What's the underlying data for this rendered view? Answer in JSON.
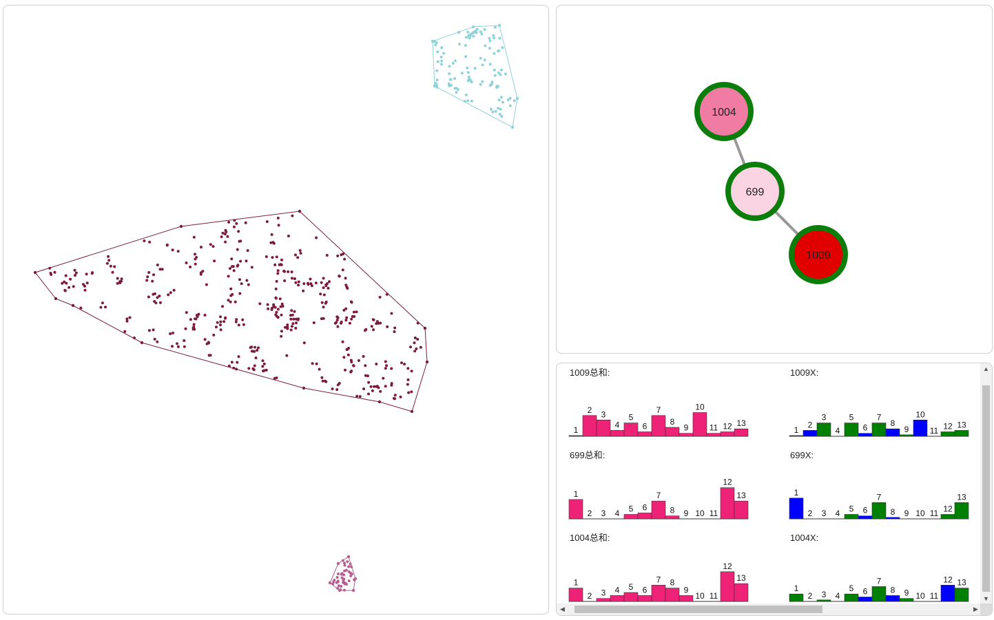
{
  "scatter": {
    "clusters": [
      {
        "name": "cluster-cyan",
        "color": "#8fd3d9",
        "hull": [
          [
            627,
            59
          ],
          [
            686,
            38
          ],
          [
            724,
            36
          ],
          [
            750,
            142
          ],
          [
            743,
            184
          ],
          [
            630,
            124
          ]
        ],
        "center": [
          690,
          105
        ],
        "spread": [
          40,
          45
        ],
        "count": 110
      },
      {
        "name": "cluster-maroon",
        "color": "#7b1c3e",
        "hull": [
          [
            50,
            395
          ],
          [
            262,
            328
          ],
          [
            434,
            306
          ],
          [
            616,
            476
          ],
          [
            619,
            525
          ],
          [
            597,
            597
          ],
          [
            550,
            583
          ],
          [
            440,
            563
          ],
          [
            205,
            497
          ],
          [
            105,
            443
          ],
          [
            80,
            433
          ]
        ],
        "center": [
          335,
          430
        ],
        "spread": [
          230,
          110
        ],
        "count": 420
      },
      {
        "name": "cluster-pink",
        "color": "#b85f91",
        "hull": [
          [
            505,
            808
          ],
          [
            515,
            840
          ],
          [
            512,
            857
          ],
          [
            492,
            857
          ],
          [
            478,
            846
          ],
          [
            490,
            818
          ]
        ],
        "center": [
          497,
          838
        ],
        "spread": [
          12,
          15
        ],
        "count": 40
      }
    ]
  },
  "graph": {
    "nodes": [
      {
        "id": "1004",
        "label": "1004",
        "fill": "#f07ba3",
        "stroke": "#0a7d0a"
      },
      {
        "id": "699",
        "label": "699",
        "fill": "#fad4e2",
        "stroke": "#0a7d0a"
      },
      {
        "id": "1009",
        "label": "1009",
        "fill": "#e00000",
        "stroke": "#0a7d0a"
      }
    ],
    "edges": [
      [
        "1004",
        "699"
      ],
      [
        "699",
        "1009"
      ]
    ]
  },
  "histograms": {
    "colors": {
      "pink": "#ee2277",
      "blue": "#0000ff",
      "green": "#008000"
    },
    "charts": [
      {
        "title": "1009总和:",
        "type": "bar",
        "values": [
          0.5,
          14,
          11,
          4,
          9,
          3,
          14,
          6,
          2,
          16,
          2,
          3,
          5
        ],
        "colors": "pink"
      },
      {
        "title": "1009X:",
        "type": "bar",
        "values": [
          0.5,
          4,
          9,
          0,
          9,
          2,
          9,
          5,
          1,
          11,
          0,
          3,
          4
        ],
        "colors": "alt"
      },
      {
        "title": "699总和:",
        "type": "bar",
        "values": [
          13,
          0,
          0,
          0,
          3,
          4,
          12,
          2,
          0,
          0,
          0,
          21,
          12
        ],
        "colors": "pink"
      },
      {
        "title": "699X:",
        "type": "bar",
        "values": [
          14,
          0,
          0,
          0,
          3,
          2,
          11,
          1,
          0,
          0,
          0,
          3,
          11
        ],
        "colors": "alt"
      },
      {
        "title": "1004总和:",
        "type": "bar",
        "values": [
          9,
          0,
          2,
          4,
          6,
          4,
          11,
          9,
          4,
          0,
          0,
          20,
          12
        ],
        "colors": "pink"
      },
      {
        "title": "1004X:",
        "type": "bar",
        "values": [
          5,
          0,
          1,
          0,
          5,
          3,
          10,
          4,
          2,
          0,
          0,
          11,
          9
        ],
        "colors": "alt"
      }
    ],
    "categories": [
      "1",
      "2",
      "3",
      "4",
      "5",
      "6",
      "7",
      "8",
      "9",
      "10",
      "11",
      "12",
      "13"
    ]
  },
  "scroll": {
    "up": "▲",
    "down": "▼",
    "left": "◀",
    "right": "▶"
  }
}
